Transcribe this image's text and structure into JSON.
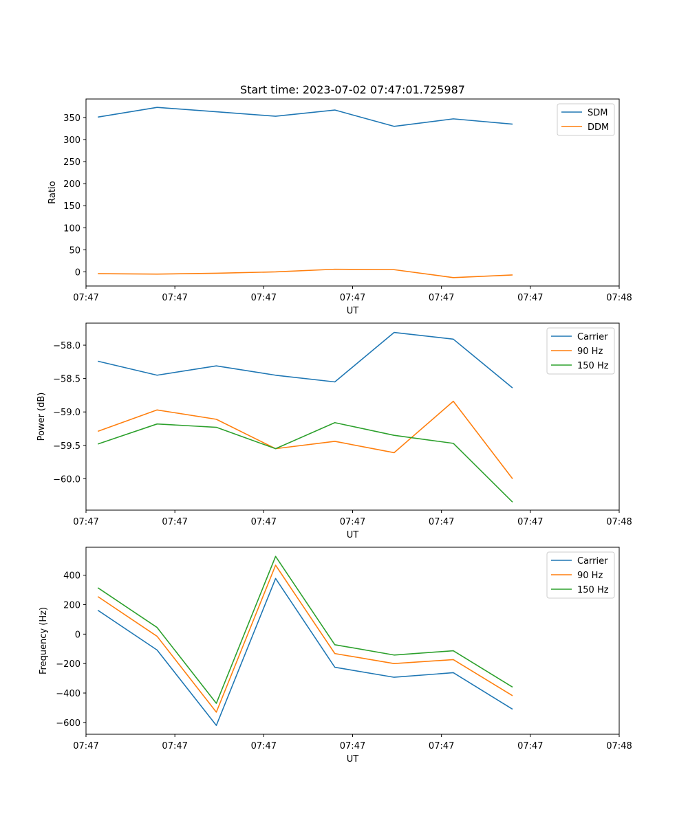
{
  "colors": {
    "series1": "#1f77b4",
    "series2": "#ff7f0e",
    "series3": "#2ca02c",
    "axis": "#000000",
    "legend_border": "#cccccc"
  },
  "chart_data": [
    {
      "type": "line",
      "title": "Start time: 2023-07-02 07:47:01.725987",
      "xlabel": "UT",
      "ylabel": "Ratio",
      "x": [
        1,
        2,
        3,
        4,
        5,
        6,
        7,
        8
      ],
      "xlim": [
        0.8,
        9.8
      ],
      "xticks": [
        0.8,
        2.3,
        3.8,
        5.3,
        6.8,
        8.3,
        9.8
      ],
      "xtick_labels": [
        "07:47",
        "07:47",
        "07:47",
        "07:47",
        "07:47",
        "07:47",
        "07:48"
      ],
      "ylim": [
        -32,
        392
      ],
      "yticks": [
        0,
        50,
        100,
        150,
        200,
        250,
        300,
        350
      ],
      "ytick_labels": [
        "0",
        "50",
        "100",
        "150",
        "200",
        "250",
        "300",
        "350"
      ],
      "legend_position": "top-right",
      "series": [
        {
          "name": "SDM",
          "color_key": "series1",
          "values": [
            351,
            373,
            363,
            353,
            367,
            330,
            347,
            335
          ]
        },
        {
          "name": "DDM",
          "color_key": "series2",
          "values": [
            -4,
            -5,
            -3,
            0,
            6,
            5,
            -13,
            -7
          ]
        }
      ]
    },
    {
      "type": "line",
      "title": "",
      "xlabel": "UT",
      "ylabel": "Power (dB)",
      "x": [
        1,
        2,
        3,
        4,
        5,
        6,
        7,
        8
      ],
      "xlim": [
        0.8,
        9.8
      ],
      "xticks": [
        0.8,
        2.3,
        3.8,
        5.3,
        6.8,
        8.3,
        9.8
      ],
      "xtick_labels": [
        "07:47",
        "07:47",
        "07:47",
        "07:47",
        "07:47",
        "07:47",
        "07:48"
      ],
      "ylim": [
        -60.47,
        -57.67
      ],
      "yticks": [
        -60.0,
        -59.5,
        -59.0,
        -58.5,
        -58.0
      ],
      "ytick_labels": [
        "−60.0",
        "−59.5",
        "−59.0",
        "−58.5",
        "−58.0"
      ],
      "legend_position": "top-right",
      "series": [
        {
          "name": "Carrier",
          "color_key": "series1",
          "values": [
            -58.24,
            -58.45,
            -58.31,
            -58.45,
            -58.55,
            -57.81,
            -57.91,
            -58.64
          ]
        },
        {
          "name": "90 Hz",
          "color_key": "series2",
          "values": [
            -59.29,
            -58.97,
            -59.11,
            -59.55,
            -59.44,
            -59.61,
            -58.84,
            -60.0
          ]
        },
        {
          "name": "150 Hz",
          "color_key": "series3",
          "values": [
            -59.48,
            -59.18,
            -59.23,
            -59.55,
            -59.16,
            -59.35,
            -59.47,
            -60.35
          ]
        }
      ]
    },
    {
      "type": "line",
      "title": "",
      "xlabel": "UT",
      "ylabel": "Frequency (Hz)",
      "x": [
        1,
        2,
        3,
        4,
        5,
        6,
        7,
        8
      ],
      "xlim": [
        0.8,
        9.8
      ],
      "xticks": [
        0.8,
        2.3,
        3.8,
        5.3,
        6.8,
        8.3,
        9.8
      ],
      "xtick_labels": [
        "07:47",
        "07:47",
        "07:47",
        "07:47",
        "07:47",
        "07:47",
        "07:48"
      ],
      "ylim": [
        -680,
        590
      ],
      "yticks": [
        -600,
        -400,
        -200,
        0,
        200,
        400
      ],
      "ytick_labels": [
        "−600",
        "−400",
        "−200",
        "0",
        "200",
        "400"
      ],
      "legend_position": "top-right",
      "series": [
        {
          "name": "Carrier",
          "color_key": "series1",
          "values": [
            162,
            -108,
            -620,
            378,
            -225,
            -293,
            -262,
            -510
          ]
        },
        {
          "name": "90 Hz",
          "color_key": "series2",
          "values": [
            255,
            -15,
            -530,
            468,
            -132,
            -200,
            -173,
            -418
          ]
        },
        {
          "name": "150 Hz",
          "color_key": "series3",
          "values": [
            315,
            45,
            -470,
            528,
            -72,
            -142,
            -113,
            -360
          ]
        }
      ]
    }
  ]
}
